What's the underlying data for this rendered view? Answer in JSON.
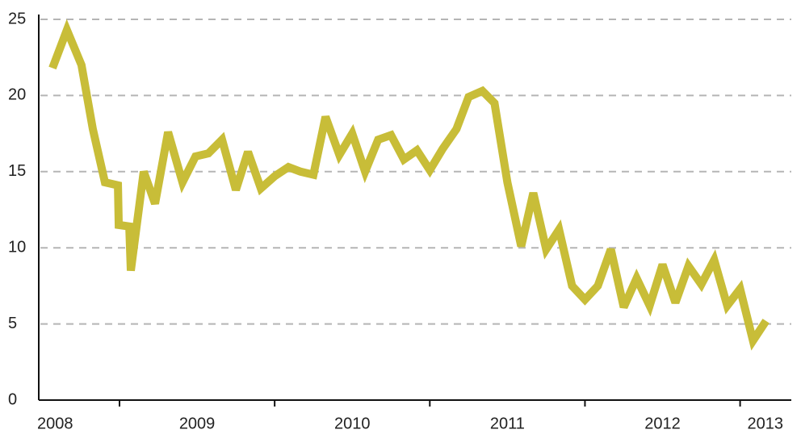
{
  "chart_data": {
    "type": "line",
    "x": [
      2008.568,
      2008.661,
      2008.755,
      2008.828,
      2008.906,
      2008.99,
      2008.995,
      2009.063,
      2009.073,
      2009.156,
      2009.229,
      2009.313,
      2009.406,
      2009.49,
      2009.573,
      2009.661,
      2009.75,
      2009.828,
      2009.911,
      2010.0,
      2010.089,
      2010.167,
      2010.25,
      2010.328,
      2010.417,
      2010.5,
      2010.583,
      2010.667,
      2010.75,
      2010.833,
      2010.917,
      2011.0,
      2011.083,
      2011.172,
      2011.25,
      2011.339,
      2011.417,
      2011.5,
      2011.589,
      2011.667,
      2011.75,
      2011.833,
      2011.917,
      2012.0,
      2012.083,
      2012.167,
      2012.25,
      2012.333,
      2012.417,
      2012.5,
      2012.583,
      2012.667,
      2012.75,
      2012.833,
      2012.917,
      2013.0,
      2013.083,
      2013.167
    ],
    "series": [
      {
        "color": "#c8bd38",
        "values": [
          21.8,
          24.3,
          22.0,
          17.8,
          14.3,
          14.1,
          11.5,
          11.4,
          8.5,
          15.0,
          12.9,
          17.6,
          14.3,
          16.0,
          16.2,
          17.1,
          13.8,
          16.3,
          13.9,
          14.7,
          15.3,
          15.0,
          14.8,
          18.6,
          16.1,
          17.5,
          15.0,
          17.1,
          17.4,
          15.8,
          16.4,
          15.1,
          16.5,
          17.8,
          19.9,
          20.3,
          19.5,
          14.3,
          10.1,
          13.6,
          9.9,
          11.2,
          7.5,
          6.6,
          7.5,
          9.9,
          6.1,
          8.0,
          6.2,
          8.9,
          6.4,
          8.8,
          7.6,
          9.2,
          6.2,
          7.3,
          3.9,
          5.2
        ]
      }
    ],
    "xlim": [
      2008.49,
      2013.33
    ],
    "xticks": [
      2009,
      2010,
      2011,
      2012,
      2013
    ],
    "x_labels": [
      "2008",
      "2009",
      "2010",
      "2011",
      "2012",
      "2013"
    ],
    "ylim": [
      0,
      25
    ],
    "yticks": [
      0,
      5,
      10,
      15,
      20,
      25
    ],
    "grid": true
  }
}
